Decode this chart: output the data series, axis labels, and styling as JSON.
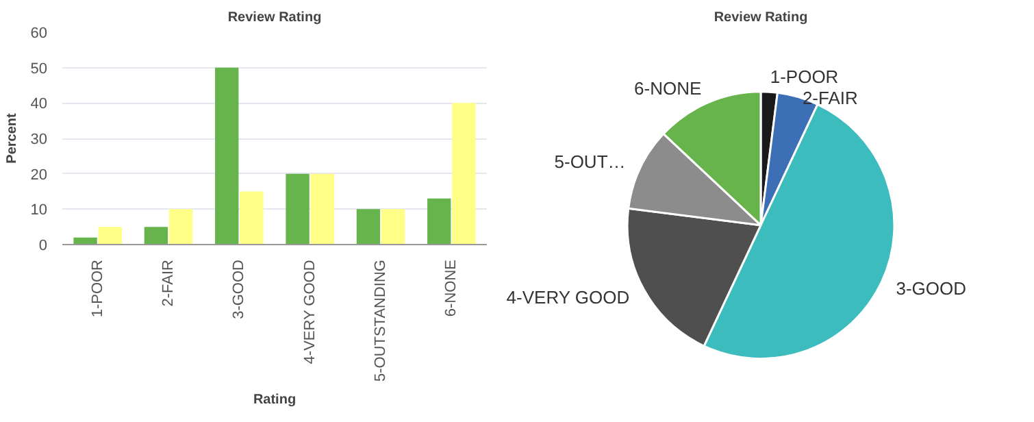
{
  "chart_data": [
    {
      "type": "bar",
      "title": "Review Rating",
      "xlabel": "Rating",
      "ylabel": "Percent",
      "categories": [
        "1-POOR",
        "2-FAIR",
        "3-GOOD",
        "4-VERY GOOD",
        "5-OUTSTANDING",
        "6-NONE"
      ],
      "series": [
        {
          "color": "#66b44b",
          "values": [
            2,
            5,
            50,
            20,
            10,
            13
          ]
        },
        {
          "color": "#ffff88",
          "values": [
            5,
            10,
            15,
            20,
            10,
            40
          ]
        }
      ],
      "ylim": [
        0,
        60
      ],
      "yticks": [
        0,
        10,
        20,
        30,
        40,
        50,
        60
      ],
      "grid": "y"
    },
    {
      "type": "pie",
      "title": "Review Rating",
      "categories": [
        "1-POOR",
        "2-FAIR",
        "3-GOOD",
        "4-VERY GOOD",
        "5-OUT…",
        "6-NONE"
      ],
      "values": [
        2,
        5,
        50,
        20,
        10,
        13
      ],
      "colors": [
        "#1a1a1a",
        "#3d6fb6",
        "#3cbcbc",
        "#4f4f4f",
        "#8c8c8c",
        "#66b44b"
      ]
    }
  ]
}
